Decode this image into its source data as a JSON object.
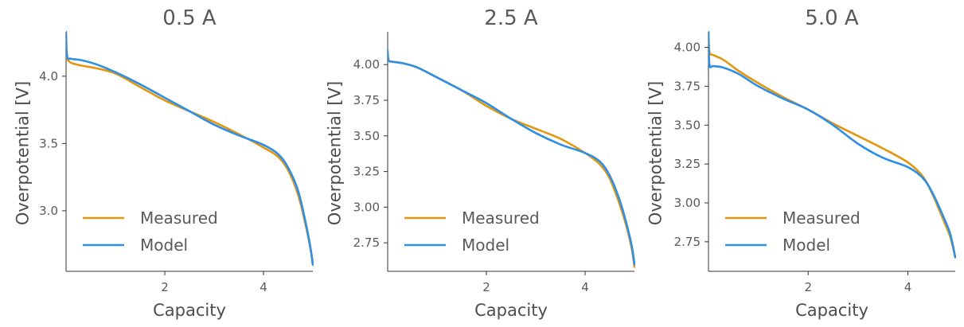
{
  "chart_data": [
    {
      "type": "line",
      "title": "0.5 A",
      "xlabel": "Capacity",
      "ylabel": "Overpotential [V]",
      "xlim": [
        0,
        5.0
      ],
      "ylim": [
        2.55,
        4.33
      ],
      "xticks": [
        2,
        4
      ],
      "xtick_labels": [
        "2",
        "4"
      ],
      "yticks": [
        3.0,
        3.5,
        4.0
      ],
      "ytick_labels": [
        "3.0",
        "3.5",
        "4.0"
      ],
      "grid": false,
      "legend_position": "lower-left",
      "series": [
        {
          "name": "Measured",
          "color": "#e3960f",
          "x": [
            0,
            0.02,
            0.1,
            0.3,
            0.6,
            1.0,
            1.5,
            2.0,
            2.5,
            3.0,
            3.5,
            4.0,
            4.3,
            4.5,
            4.7,
            4.85,
            4.95,
            5.0
          ],
          "y": [
            4.15,
            4.13,
            4.1,
            4.08,
            4.06,
            4.02,
            3.92,
            3.82,
            3.74,
            3.66,
            3.57,
            3.47,
            3.4,
            3.3,
            3.12,
            2.9,
            2.72,
            2.6
          ]
        },
        {
          "name": "Model",
          "color": "#2e8fe6",
          "x": [
            0,
            0.02,
            0.1,
            0.3,
            0.6,
            1.0,
            1.5,
            2.0,
            2.5,
            3.0,
            3.5,
            4.0,
            4.3,
            4.5,
            4.7,
            4.85,
            4.95,
            5.0
          ],
          "y": [
            4.33,
            4.15,
            4.13,
            4.12,
            4.09,
            4.03,
            3.94,
            3.84,
            3.74,
            3.64,
            3.56,
            3.49,
            3.42,
            3.32,
            3.15,
            2.92,
            2.73,
            2.6
          ]
        }
      ]
    },
    {
      "type": "line",
      "title": "2.5 A",
      "xlabel": "Capacity",
      "ylabel": "Overpotential [V]",
      "xlim": [
        0,
        5.0
      ],
      "ylim": [
        2.55,
        4.23
      ],
      "xticks": [
        2,
        4
      ],
      "xtick_labels": [
        "2",
        "4"
      ],
      "yticks": [
        2.75,
        3.0,
        3.25,
        3.5,
        3.75,
        4.0
      ],
      "ytick_labels": [
        "2.75",
        "3.00",
        "3.25",
        "3.50",
        "3.75",
        "4.00"
      ],
      "grid": false,
      "legend_position": "lower-left",
      "series": [
        {
          "name": "Measured",
          "color": "#e3960f",
          "x": [
            0,
            0.02,
            0.1,
            0.3,
            0.6,
            1.0,
            1.5,
            2.0,
            2.5,
            3.0,
            3.5,
            4.0,
            4.3,
            4.5,
            4.7,
            4.85,
            4.95,
            5.0
          ],
          "y": [
            4.06,
            4.03,
            4.02,
            4.01,
            3.98,
            3.91,
            3.82,
            3.71,
            3.62,
            3.55,
            3.48,
            3.38,
            3.3,
            3.2,
            3.02,
            2.85,
            2.7,
            2.58
          ]
        },
        {
          "name": "Model",
          "color": "#2e8fe6",
          "x": [
            0,
            0.02,
            0.1,
            0.3,
            0.6,
            1.0,
            1.5,
            2.0,
            2.5,
            3.0,
            3.5,
            4.0,
            4.3,
            4.5,
            4.7,
            4.85,
            4.95,
            5.0
          ],
          "y": [
            4.1,
            4.03,
            4.02,
            4.01,
            3.98,
            3.91,
            3.82,
            3.73,
            3.62,
            3.52,
            3.44,
            3.38,
            3.32,
            3.22,
            3.05,
            2.87,
            2.72,
            2.6
          ]
        }
      ]
    },
    {
      "type": "line",
      "title": "5.0 A",
      "xlabel": "Capacity",
      "ylabel": "Overpotential [V]",
      "xlim": [
        0,
        4.95
      ],
      "ylim": [
        2.56,
        4.1
      ],
      "xticks": [
        2,
        4
      ],
      "xtick_labels": [
        "2",
        "4"
      ],
      "yticks": [
        2.75,
        3.0,
        3.25,
        3.5,
        3.75,
        4.0
      ],
      "ytick_labels": [
        "2.75",
        "3.00",
        "3.25",
        "3.50",
        "3.75",
        "4.00"
      ],
      "grid": false,
      "legend_position": "lower-left",
      "series": [
        {
          "name": "Measured",
          "color": "#e3960f",
          "x": [
            0,
            0.02,
            0.1,
            0.3,
            0.6,
            1.0,
            1.5,
            2.0,
            2.5,
            3.0,
            3.5,
            4.0,
            4.3,
            4.5,
            4.7,
            4.85,
            4.95
          ],
          "y": [
            4.1,
            3.97,
            3.95,
            3.92,
            3.85,
            3.77,
            3.68,
            3.6,
            3.51,
            3.43,
            3.35,
            3.26,
            3.17,
            3.05,
            2.9,
            2.78,
            2.65
          ]
        },
        {
          "name": "Model",
          "color": "#2e8fe6",
          "x": [
            0,
            0.02,
            0.1,
            0.3,
            0.6,
            1.0,
            1.5,
            2.0,
            2.5,
            3.0,
            3.5,
            4.0,
            4.3,
            4.5,
            4.7,
            4.85,
            4.95
          ],
          "y": [
            4.1,
            3.89,
            3.88,
            3.87,
            3.83,
            3.75,
            3.67,
            3.6,
            3.5,
            3.38,
            3.29,
            3.23,
            3.16,
            3.06,
            2.92,
            2.8,
            2.65
          ]
        }
      ]
    }
  ]
}
